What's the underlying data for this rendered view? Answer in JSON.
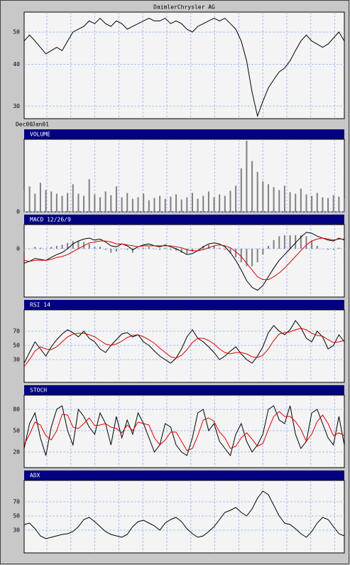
{
  "chart_data": [
    {
      "type": "line",
      "title": "DaimlerChrysler AG",
      "log_scale": true,
      "grid": true,
      "categories": [
        "Dec00",
        null,
        null,
        "Jan01",
        null,
        null,
        null,
        null,
        null,
        null,
        null,
        null,
        null,
        null,
        null,
        null,
        null,
        null,
        null,
        null,
        null,
        null,
        null,
        null,
        null,
        null,
        null,
        null,
        null,
        null,
        null,
        null,
        null,
        null,
        null,
        null,
        null,
        null,
        null,
        null,
        null,
        null,
        null,
        null,
        null,
        null,
        null,
        null,
        null,
        null,
        null,
        null,
        null,
        null,
        null,
        null,
        null,
        null,
        null,
        null
      ],
      "ylim": [
        27.5,
        57.4
      ],
      "yticks": [
        30,
        40,
        50
      ],
      "series": [
        {
          "color": "#000000",
          "values": [
            47,
            49,
            47,
            45,
            43,
            44,
            45,
            44,
            47,
            50,
            51,
            52,
            54,
            53,
            55,
            53,
            52,
            54,
            53,
            51,
            52,
            53,
            54,
            55,
            54,
            54,
            55,
            53,
            54,
            53,
            51,
            50,
            52,
            53,
            54,
            55,
            54,
            55,
            53,
            51,
            47,
            41,
            33,
            28,
            31,
            34,
            36,
            38,
            39,
            41,
            44,
            47,
            49,
            47,
            46,
            45,
            46,
            48,
            50,
            47
          ]
        }
      ]
    },
    {
      "type": "bar",
      "title": "VOLUME",
      "grid": true,
      "ylim": [
        0,
        10
      ],
      "yticks": [
        0
      ],
      "series": [
        {
          "color": "#808080",
          "values": [
            3,
            3.5,
            2.5,
            4,
            3,
            2.8,
            2.5,
            2.2,
            2.6,
            3.8,
            2.5,
            2.2,
            4.5,
            2.4,
            2,
            2.8,
            2.3,
            3.5,
            2,
            2.6,
            1.8,
            2,
            2.5,
            1.6,
            1.9,
            2.2,
            1.8,
            2.1,
            2.4,
            1.7,
            2,
            2.6,
            1.8,
            2.2,
            2.8,
            2,
            2.4,
            2.2,
            2.9,
            3.6,
            6,
            9.8,
            7,
            5.5,
            4.2,
            3.8,
            3.4,
            3,
            3.6,
            2.7,
            2.5,
            3.2,
            2.4,
            2.2,
            2.6,
            2,
            1.9,
            2.3,
            2.1,
            1.8
          ]
        }
      ]
    },
    {
      "type": "combo",
      "title": "MACD 12/26/9",
      "grid": true,
      "ylim": [
        -5,
        2.5
      ],
      "yticks": [
        0
      ],
      "series": [
        {
          "type": "bar",
          "color": "#808080",
          "values": [
            -0.3,
            0,
            0.2,
            0.1,
            0,
            0.2,
            0.3,
            0.4,
            0.6,
            0.8,
            0.8,
            0.7,
            0.5,
            0.2,
            0.2,
            -0.1,
            -0.4,
            -0.3,
            0,
            -0.1,
            -0.4,
            0,
            0.1,
            0.2,
            0,
            -0.1,
            0.1,
            -0.1,
            -0.2,
            -0.4,
            -0.5,
            -0.3,
            0,
            0.3,
            0.4,
            0.3,
            0.1,
            -0.1,
            -0.5,
            -0.9,
            -1.4,
            -1.8,
            -1.8,
            -1.4,
            -0.6,
            0.3,
            0.9,
            1.3,
            1.4,
            1.4,
            1.4,
            1.4,
            1.3,
            0.8,
            0.3,
            0,
            -0.1,
            -0.1,
            0.1,
            -0.1
          ]
        },
        {
          "type": "line",
          "color": "#000000",
          "values": [
            -1.5,
            -1.3,
            -1.0,
            -1.1,
            -1.2,
            -0.9,
            -0.6,
            -0.4,
            0.0,
            0.5,
            0.8,
            1.0,
            1.1,
            0.9,
            1.0,
            0.7,
            0.3,
            0.2,
            0.5,
            0.3,
            -0.1,
            0.2,
            0.4,
            0.5,
            0.3,
            0.2,
            0.4,
            0.2,
            0.0,
            -0.3,
            -0.6,
            -0.5,
            -0.2,
            0.2,
            0.5,
            0.6,
            0.5,
            0.2,
            -0.4,
            -1.2,
            -2.2,
            -3.3,
            -4.0,
            -4.3,
            -3.8,
            -2.9,
            -2.0,
            -1.2,
            -0.6,
            0.0,
            0.6,
            1.2,
            1.7,
            1.6,
            1.3,
            1.1,
            0.9,
            0.8,
            1.1,
            0.9
          ]
        },
        {
          "type": "line",
          "color": "#e00000",
          "values": [
            -1.2,
            -1.3,
            -1.2,
            -1.2,
            -1.2,
            -1.1,
            -0.9,
            -0.8,
            -0.6,
            -0.3,
            0.0,
            0.3,
            0.6,
            0.7,
            0.8,
            0.8,
            0.7,
            0.5,
            0.5,
            0.4,
            0.3,
            0.2,
            0.3,
            0.3,
            0.3,
            0.3,
            0.3,
            0.3,
            0.2,
            0.1,
            -0.1,
            -0.2,
            -0.2,
            -0.1,
            0.1,
            0.3,
            0.4,
            0.3,
            0.1,
            -0.3,
            -0.8,
            -1.5,
            -2.2,
            -2.9,
            -3.2,
            -3.2,
            -2.9,
            -2.5,
            -2.0,
            -1.4,
            -0.8,
            -0.2,
            0.4,
            0.8,
            1.0,
            1.1,
            1.0,
            0.9,
            1.0,
            1.0
          ]
        }
      ]
    },
    {
      "type": "line",
      "title": "RSI 14",
      "grid": true,
      "ylim": [
        -2,
        100
      ],
      "yticks": [
        30,
        50,
        70
      ],
      "series": [
        {
          "color": "#000000",
          "values": [
            25,
            40,
            55,
            45,
            35,
            48,
            58,
            66,
            72,
            68,
            62,
            70,
            60,
            55,
            45,
            40,
            50,
            58,
            66,
            68,
            62,
            65,
            55,
            50,
            42,
            35,
            30,
            25,
            32,
            45,
            62,
            72,
            60,
            55,
            48,
            40,
            30,
            35,
            42,
            48,
            38,
            30,
            25,
            35,
            48,
            68,
            78,
            70,
            65,
            72,
            85,
            75,
            60,
            55,
            70,
            62,
            45,
            50,
            65,
            55
          ]
        },
        {
          "color": "#e00000",
          "values": [
            20,
            30,
            42,
            48,
            45,
            44,
            48,
            55,
            62,
            66,
            67,
            67,
            65,
            62,
            57,
            52,
            50,
            52,
            56,
            61,
            64,
            65,
            62,
            58,
            53,
            46,
            40,
            34,
            32,
            36,
            44,
            54,
            60,
            60,
            57,
            52,
            45,
            40,
            38,
            40,
            40,
            38,
            34,
            33,
            36,
            45,
            57,
            66,
            68,
            69,
            72,
            74,
            72,
            67,
            64,
            63,
            58,
            54,
            55,
            57
          ]
        }
      ]
    },
    {
      "type": "line",
      "title": "STOCH",
      "grid": true,
      "ylim": [
        -2,
        100
      ],
      "yticks": [
        20,
        50,
        80
      ],
      "series": [
        {
          "color": "#000000",
          "values": [
            25,
            60,
            75,
            40,
            15,
            55,
            80,
            85,
            50,
            30,
            80,
            70,
            55,
            45,
            75,
            60,
            30,
            70,
            40,
            65,
            45,
            75,
            60,
            40,
            20,
            30,
            60,
            55,
            30,
            20,
            15,
            40,
            75,
            80,
            50,
            60,
            35,
            25,
            15,
            45,
            60,
            35,
            20,
            30,
            45,
            80,
            85,
            65,
            60,
            85,
            45,
            25,
            35,
            75,
            80,
            60,
            40,
            30,
            70,
            30
          ]
        },
        {
          "color": "#e00000",
          "values": [
            30,
            45,
            62,
            58,
            43,
            37,
            50,
            73,
            72,
            55,
            53,
            60,
            68,
            57,
            58,
            60,
            55,
            53,
            47,
            58,
            50,
            62,
            60,
            58,
            40,
            30,
            37,
            48,
            48,
            35,
            22,
            25,
            43,
            65,
            68,
            63,
            48,
            40,
            25,
            28,
            40,
            47,
            38,
            28,
            32,
            52,
            70,
            77,
            70,
            70,
            63,
            52,
            35,
            45,
            63,
            72,
            60,
            43,
            47,
            43
          ]
        }
      ]
    },
    {
      "type": "line",
      "title": "ADX",
      "grid": true,
      "ylim": [
        -2,
        100
      ],
      "yticks": [
        30,
        50,
        70
      ],
      "series": [
        {
          "color": "#000000",
          "values": [
            38,
            40,
            32,
            22,
            18,
            20,
            22,
            24,
            25,
            28,
            35,
            45,
            48,
            42,
            35,
            28,
            24,
            22,
            20,
            24,
            35,
            42,
            44,
            40,
            36,
            30,
            40,
            45,
            48,
            42,
            32,
            25,
            20,
            22,
            28,
            35,
            45,
            55,
            58,
            62,
            55,
            50,
            60,
            75,
            85,
            80,
            65,
            50,
            40,
            38,
            32,
            25,
            20,
            28,
            40,
            48,
            45,
            35,
            25,
            22
          ]
        }
      ]
    }
  ]
}
